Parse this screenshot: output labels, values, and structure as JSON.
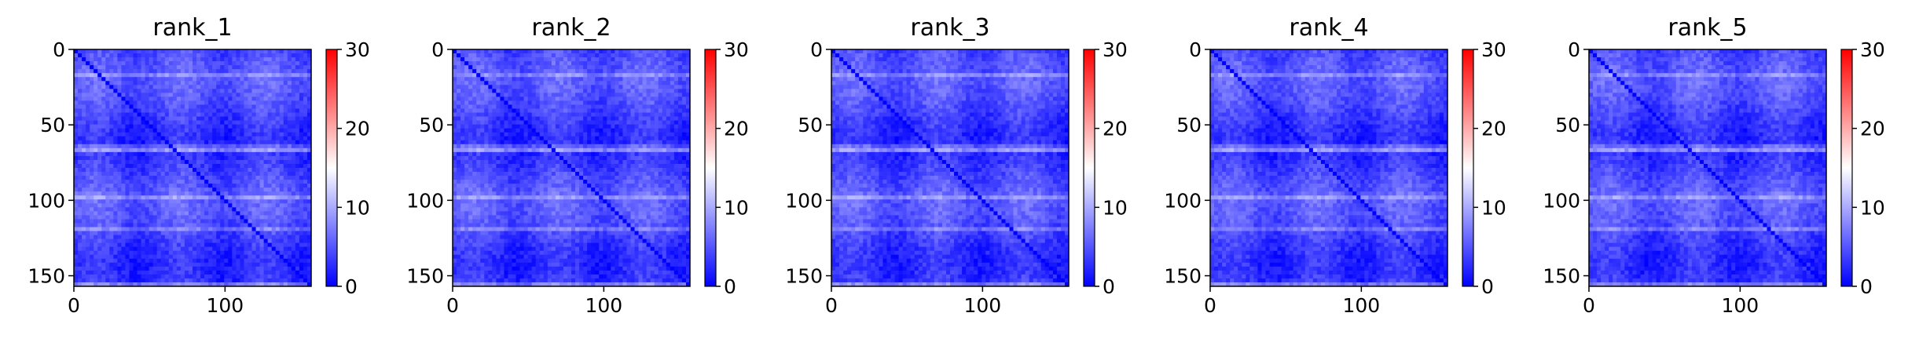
{
  "colors": {
    "cmap_low": "#0000ff",
    "cmap_mid": "#ffffff",
    "cmap_high": "#ff0000",
    "axis": "#000000",
    "background": "#ffffff"
  },
  "chart_data": [
    {
      "type": "heatmap",
      "title": "rank_1",
      "xlabel": "",
      "ylabel": "",
      "matrix_size": 157,
      "xlim": [
        0,
        157
      ],
      "ylim": [
        157,
        0
      ],
      "xticks": [
        0,
        100
      ],
      "yticks": [
        0,
        50,
        100,
        150
      ],
      "colorbar": {
        "range": [
          0,
          30
        ],
        "ticks": [
          0,
          10,
          20,
          30
        ],
        "colormap": "bwr"
      },
      "value_summary": {
        "typical_min": 0,
        "typical_max": 12,
        "diagonal": 0
      },
      "bright_rows": [
        18,
        65,
        67,
        97,
        99,
        120,
        155
      ],
      "grid": false
    },
    {
      "type": "heatmap",
      "title": "rank_2",
      "xlabel": "",
      "ylabel": "",
      "matrix_size": 157,
      "xlim": [
        0,
        157
      ],
      "ylim": [
        157,
        0
      ],
      "xticks": [
        0,
        100
      ],
      "yticks": [
        0,
        50,
        100,
        150
      ],
      "colorbar": {
        "range": [
          0,
          30
        ],
        "ticks": [
          0,
          10,
          20,
          30
        ],
        "colormap": "bwr"
      },
      "value_summary": {
        "typical_min": 0,
        "typical_max": 12,
        "diagonal": 0
      },
      "bright_rows": [
        18,
        65,
        67,
        97,
        99,
        120,
        155
      ],
      "grid": false
    },
    {
      "type": "heatmap",
      "title": "rank_3",
      "xlabel": "",
      "ylabel": "",
      "matrix_size": 157,
      "xlim": [
        0,
        157
      ],
      "ylim": [
        157,
        0
      ],
      "xticks": [
        0,
        100
      ],
      "yticks": [
        0,
        50,
        100,
        150
      ],
      "colorbar": {
        "range": [
          0,
          30
        ],
        "ticks": [
          0,
          10,
          20,
          30
        ],
        "colormap": "bwr"
      },
      "value_summary": {
        "typical_min": 0,
        "typical_max": 12,
        "diagonal": 0
      },
      "bright_rows": [
        18,
        65,
        67,
        97,
        99,
        120,
        155
      ],
      "grid": false
    },
    {
      "type": "heatmap",
      "title": "rank_4",
      "xlabel": "",
      "ylabel": "",
      "matrix_size": 157,
      "xlim": [
        0,
        157
      ],
      "ylim": [
        157,
        0
      ],
      "xticks": [
        0,
        100
      ],
      "yticks": [
        0,
        50,
        100,
        150
      ],
      "colorbar": {
        "range": [
          0,
          30
        ],
        "ticks": [
          0,
          10,
          20,
          30
        ],
        "colormap": "bwr"
      },
      "value_summary": {
        "typical_min": 0,
        "typical_max": 12,
        "diagonal": 0
      },
      "bright_rows": [
        18,
        65,
        67,
        97,
        99,
        120,
        155
      ],
      "grid": false
    },
    {
      "type": "heatmap",
      "title": "rank_5",
      "xlabel": "",
      "ylabel": "",
      "matrix_size": 157,
      "xlim": [
        0,
        157
      ],
      "ylim": [
        157,
        0
      ],
      "xticks": [
        0,
        100
      ],
      "yticks": [
        0,
        50,
        100,
        150
      ],
      "colorbar": {
        "range": [
          0,
          30
        ],
        "ticks": [
          0,
          10,
          20,
          30
        ],
        "colormap": "bwr"
      },
      "value_summary": {
        "typical_min": 0,
        "typical_max": 12,
        "diagonal": 0
      },
      "bright_rows": [
        18,
        65,
        67,
        97,
        99,
        120,
        155
      ],
      "grid": false
    }
  ]
}
